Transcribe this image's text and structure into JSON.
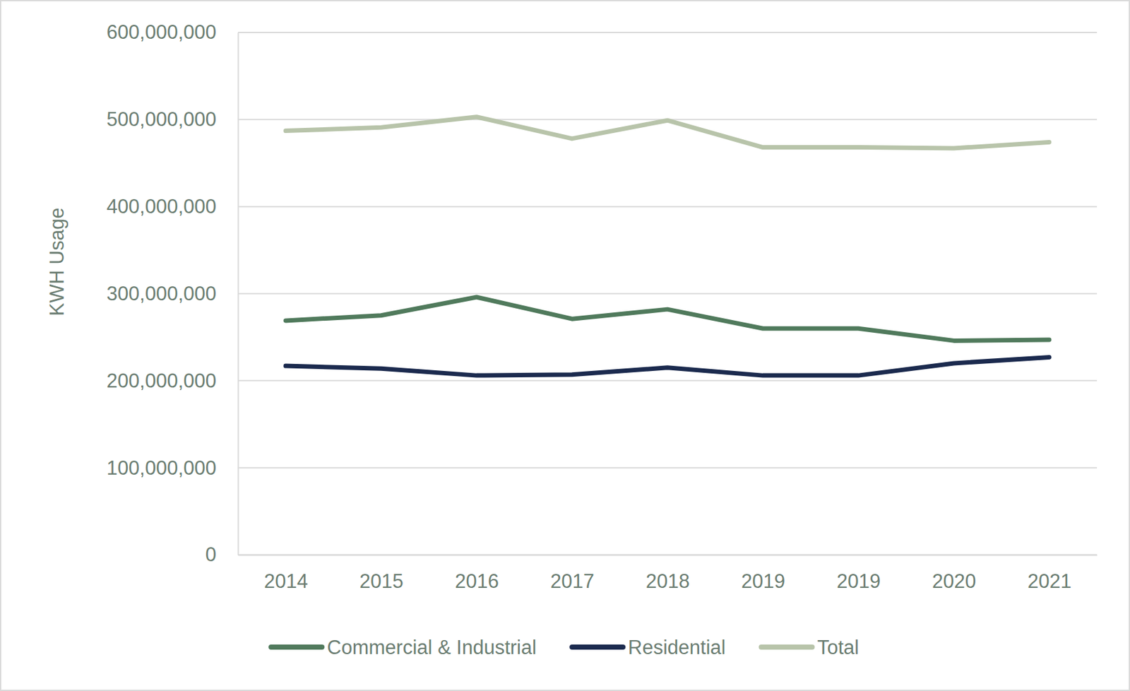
{
  "chart_data": {
    "type": "line",
    "y_label": "KWH Usage",
    "categories": [
      "2014",
      "2015",
      "2016",
      "2017",
      "2018",
      "2019",
      "2019",
      "2020",
      "2021"
    ],
    "series": [
      {
        "name": "Commercial & Industrial",
        "color": "#507a5c",
        "values": [
          269000000,
          275000000,
          296000000,
          271000000,
          282000000,
          260000000,
          260000000,
          246000000,
          247000000
        ]
      },
      {
        "name": "Residential",
        "color": "#1b2a4e",
        "values": [
          217000000,
          214000000,
          206000000,
          207000000,
          215000000,
          206000000,
          206000000,
          220000000,
          227000000
        ]
      },
      {
        "name": "Total",
        "color": "#b8c4aa",
        "values": [
          487000000,
          491000000,
          503000000,
          478000000,
          499000000,
          468000000,
          468000000,
          467000000,
          474000000
        ]
      }
    ],
    "ylim": [
      0,
      600000000
    ],
    "yticks": [
      0,
      {
        "value": 100000000,
        "label": "100,000,000"
      },
      {
        "value": 200000000,
        "label": "200,000,000"
      },
      {
        "value": 300000000,
        "label": "300,000,000"
      },
      {
        "value": 400000000,
        "label": "400,000,000"
      },
      {
        "value": 500000000,
        "label": "500,000,000"
      },
      {
        "value": 600000000,
        "label": "600,000,000"
      }
    ],
    "grid": true,
    "legend": "bottom"
  }
}
